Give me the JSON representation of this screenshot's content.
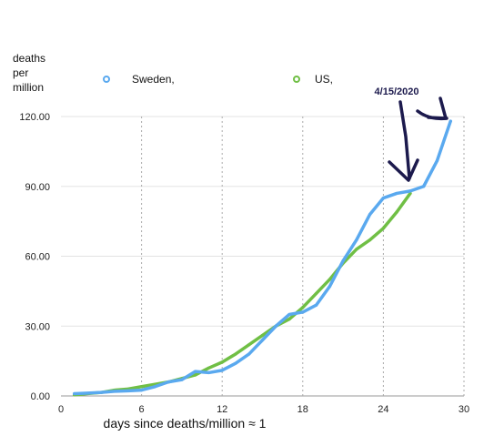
{
  "chart_data": {
    "type": "line",
    "ylabel": [
      "deaths",
      "per",
      "million"
    ],
    "xlabel": "days since deaths/million ≈ 1",
    "xlim": [
      0,
      30
    ],
    "ylim": [
      0,
      120
    ],
    "x_ticks": [
      "0",
      "6",
      "12",
      "18",
      "24",
      "30"
    ],
    "y_ticks": [
      "0.00",
      "30.00",
      "60.00",
      "90.00",
      "120.00"
    ],
    "grid": "vertical dotted",
    "legend_position": "top",
    "annotation": "4/15/2020",
    "series": [
      {
        "name": "Sweden,",
        "color": "#5aa9ef",
        "x": [
          1,
          2,
          3,
          4,
          5,
          6,
          7,
          8,
          9,
          10,
          11,
          12,
          13,
          14,
          15,
          16,
          17,
          18,
          19,
          20,
          21,
          22,
          23,
          24,
          25,
          26,
          27,
          28,
          29
        ],
        "y": [
          1,
          1.2,
          1.5,
          2,
          2.2,
          2.5,
          4,
          6,
          7,
          10.5,
          10,
          11,
          14,
          18,
          24,
          30,
          35,
          36,
          39,
          47,
          58,
          67,
          78,
          85,
          87,
          88,
          90,
          101,
          118
        ]
      },
      {
        "name": "US,",
        "color": "#70bf45",
        "x": [
          1,
          2,
          3,
          4,
          5,
          6,
          7,
          8,
          9,
          10,
          11,
          12,
          13,
          14,
          15,
          16,
          17,
          18,
          19,
          20,
          21,
          22,
          23,
          24,
          25,
          26
        ],
        "y": [
          0.5,
          1,
          1.5,
          2.5,
          3,
          4,
          5,
          6,
          7.5,
          9,
          12,
          14.5,
          18,
          22,
          26,
          30,
          33,
          38,
          44,
          50,
          57,
          63,
          67,
          72,
          79,
          87
        ]
      }
    ]
  }
}
